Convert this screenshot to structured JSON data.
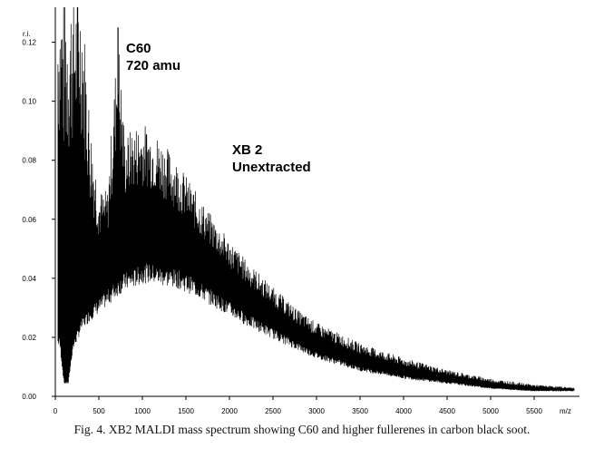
{
  "chart_data": {
    "type": "line",
    "ylabel": "r.i.",
    "xlabel": "m/z",
    "xlim": [
      0,
      6000
    ],
    "ylim": [
      0,
      0.13
    ],
    "x_ticks": [
      0,
      500,
      1000,
      1500,
      2000,
      2500,
      3000,
      3500,
      4000,
      4500,
      5000,
      5500
    ],
    "y_ticks": [
      "0.00",
      "0.02",
      "0.04",
      "0.06",
      "0.08",
      "0.10",
      "0.12"
    ],
    "grid": false,
    "series": [
      {
        "description": "mass spectrum envelope (peak maxima, lower baseline)",
        "x": [
          50,
          100,
          150,
          200,
          300,
          400,
          500,
          600,
          720,
          800,
          900,
          1000,
          1100,
          1200,
          1400,
          1600,
          1800,
          2000,
          2200,
          2500,
          2800,
          3000,
          3500,
          4000,
          4500,
          5000,
          5500,
          5950
        ],
        "upper": [
          0.14,
          0.14,
          0.14,
          0.14,
          0.14,
          0.095,
          0.07,
          0.07,
          0.125,
          0.088,
          0.092,
          0.093,
          0.091,
          0.088,
          0.08,
          0.07,
          0.061,
          0.053,
          0.046,
          0.037,
          0.029,
          0.025,
          0.018,
          0.013,
          0.009,
          0.006,
          0.004,
          0.003
        ],
        "lower": [
          0.02,
          0.005,
          0.005,
          0.018,
          0.026,
          0.03,
          0.033,
          0.036,
          0.04,
          0.042,
          0.043,
          0.045,
          0.045,
          0.044,
          0.043,
          0.04,
          0.036,
          0.032,
          0.028,
          0.023,
          0.018,
          0.015,
          0.01,
          0.007,
          0.005,
          0.003,
          0.002,
          0.002
        ]
      }
    ],
    "annotations": [
      {
        "lines": [
          "C60",
          "720 amu"
        ],
        "x": 720
      },
      {
        "lines": [
          "XB 2",
          "Unextracted"
        ],
        "x": 2000
      }
    ]
  },
  "caption": "Fig. 4.  XB2 MALDI mass spectrum showing C60 and higher fullerenes in carbon black soot."
}
